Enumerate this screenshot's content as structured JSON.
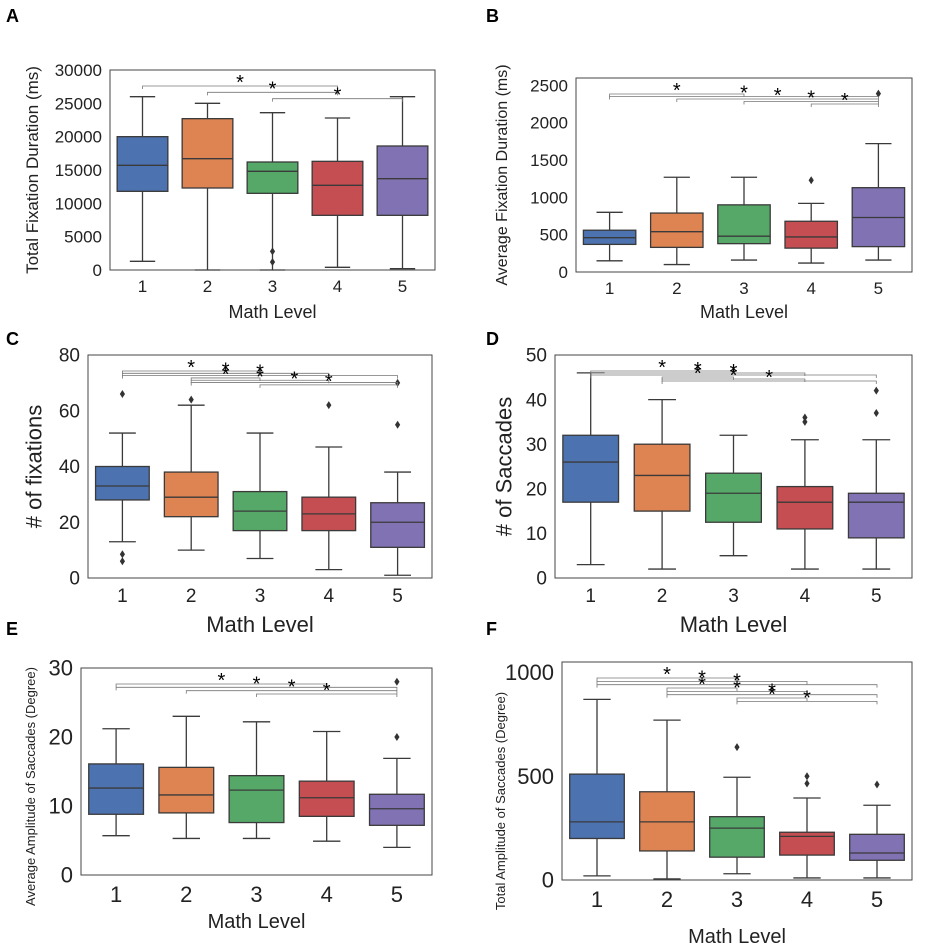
{
  "figure": {
    "colors": [
      "#4c72b0",
      "#dd8452",
      "#55a868",
      "#c44e52",
      "#8172b3"
    ],
    "sig_marker": "*"
  },
  "chart_data": [
    {
      "type": "box",
      "panel": "A",
      "xlabel": "Math Level",
      "ylabel": "Total Fixation Duration (ms)",
      "categories": [
        "1",
        "2",
        "3",
        "4",
        "5"
      ],
      "ylim": [
        0,
        30000
      ],
      "yticks": [
        0,
        5000,
        10000,
        15000,
        20000,
        25000,
        30000
      ],
      "boxes": [
        {
          "min": 1300,
          "q1": 11800,
          "median": 15700,
          "q3": 20000,
          "max": 26000,
          "outliers": []
        },
        {
          "min": 0,
          "q1": 12300,
          "median": 16700,
          "q3": 22700,
          "max": 25000,
          "outliers": []
        },
        {
          "min": 0,
          "q1": 11500,
          "median": 14800,
          "q3": 16200,
          "max": 23600,
          "outliers": [
            1200,
            2800
          ]
        },
        {
          "min": 400,
          "q1": 8200,
          "median": 12700,
          "q3": 16300,
          "max": 22800,
          "outliers": []
        },
        {
          "min": 200,
          "q1": 8200,
          "median": 13700,
          "q3": 18600,
          "max": 26000,
          "outliers": []
        }
      ],
      "significance": [
        {
          "from": "1",
          "to": "4",
          "label": "*"
        },
        {
          "from": "2",
          "to": "4",
          "label": "*"
        },
        {
          "from": "3",
          "to": "5",
          "label": "*"
        }
      ]
    },
    {
      "type": "box",
      "panel": "B",
      "xlabel": "Math Level",
      "ylabel": "Average Fixation Duration (ms)",
      "categories": [
        "1",
        "2",
        "3",
        "4",
        "5"
      ],
      "ylim": [
        0,
        2600
      ],
      "yticks": [
        0,
        500,
        1000,
        1500,
        2000,
        2500
      ],
      "boxes": [
        {
          "min": 150,
          "q1": 370,
          "median": 460,
          "q3": 560,
          "max": 800,
          "outliers": []
        },
        {
          "min": 100,
          "q1": 330,
          "median": 540,
          "q3": 790,
          "max": 1270,
          "outliers": []
        },
        {
          "min": 160,
          "q1": 380,
          "median": 480,
          "q3": 900,
          "max": 1270,
          "outliers": []
        },
        {
          "min": 120,
          "q1": 320,
          "median": 470,
          "q3": 680,
          "max": 920,
          "outliers": [
            1230
          ]
        },
        {
          "min": 160,
          "q1": 340,
          "median": 730,
          "q3": 1130,
          "max": 1720,
          "outliers": [
            2390
          ]
        }
      ],
      "significance": [
        {
          "from": "1",
          "to": "3",
          "label": "*"
        },
        {
          "from": "1",
          "to": "5",
          "label": "*"
        },
        {
          "from": "2",
          "to": "5",
          "label": "*"
        },
        {
          "from": "3",
          "to": "5",
          "label": "*"
        },
        {
          "from": "4",
          "to": "5",
          "label": "*"
        }
      ]
    },
    {
      "type": "box",
      "panel": "C",
      "xlabel": "Math Level",
      "ylabel": "# of fixations",
      "categories": [
        "1",
        "2",
        "3",
        "4",
        "5"
      ],
      "ylim": [
        0,
        80
      ],
      "yticks": [
        0,
        20,
        40,
        60,
        80
      ],
      "boxes": [
        {
          "min": 13,
          "q1": 28,
          "median": 33,
          "q3": 40,
          "max": 52,
          "outliers": [
            6,
            8.5,
            66
          ]
        },
        {
          "min": 10,
          "q1": 22,
          "median": 29,
          "q3": 38,
          "max": 62,
          "outliers": [
            64
          ]
        },
        {
          "min": 7,
          "q1": 17,
          "median": 24,
          "q3": 31,
          "max": 52,
          "outliers": []
        },
        {
          "min": 3,
          "q1": 17,
          "median": 23,
          "q3": 29,
          "max": 47,
          "outliers": [
            62
          ]
        },
        {
          "min": 1,
          "q1": 11,
          "median": 20,
          "q3": 27,
          "max": 38,
          "outliers": [
            55,
            70
          ]
        }
      ],
      "significance": [
        {
          "from": "1",
          "to": "3",
          "label": "*"
        },
        {
          "from": "1",
          "to": "4",
          "label": "*"
        },
        {
          "from": "1",
          "to": "5",
          "label": "*"
        },
        {
          "from": "2",
          "to": "3",
          "label": "*"
        },
        {
          "from": "2",
          "to": "4",
          "label": "*"
        },
        {
          "from": "2",
          "to": "5",
          "label": "*"
        },
        {
          "from": "3",
          "to": "5",
          "label": "*"
        }
      ]
    },
    {
      "type": "box",
      "panel": "D",
      "xlabel": "Math Level",
      "ylabel": "# of Saccades",
      "categories": [
        "1",
        "2",
        "3",
        "4",
        "5"
      ],
      "ylim": [
        0,
        50
      ],
      "yticks": [
        0,
        10,
        20,
        30,
        40,
        50
      ],
      "boxes": [
        {
          "min": 3,
          "q1": 17,
          "median": 26,
          "q3": 32,
          "max": 46,
          "outliers": []
        },
        {
          "min": 2,
          "q1": 15,
          "median": 23,
          "q3": 30,
          "max": 40,
          "outliers": []
        },
        {
          "min": 5,
          "q1": 12.5,
          "median": 19,
          "q3": 23.5,
          "max": 32,
          "outliers": []
        },
        {
          "min": 2,
          "q1": 11,
          "median": 17,
          "q3": 20.5,
          "max": 31,
          "outliers": [
            35,
            36
          ]
        },
        {
          "min": 2,
          "q1": 9,
          "median": 17,
          "q3": 19,
          "max": 31,
          "outliers": [
            37,
            42
          ]
        }
      ],
      "significance": [
        {
          "from": "1",
          "to": "3",
          "label": "*"
        },
        {
          "from": "1",
          "to": "4",
          "label": "*"
        },
        {
          "from": "1",
          "to": "5",
          "label": "*"
        },
        {
          "from": "2",
          "to": "3",
          "label": "*"
        },
        {
          "from": "2",
          "to": "4",
          "label": "*"
        },
        {
          "from": "2",
          "to": "5",
          "label": "*"
        }
      ]
    },
    {
      "type": "box",
      "panel": "E",
      "xlabel": "Math Level",
      "ylabel": "Average Amplitude of Saccades (Degree)",
      "categories": [
        "1",
        "2",
        "3",
        "4",
        "5"
      ],
      "ylim": [
        0,
        30
      ],
      "yticks": [
        0,
        10,
        20,
        30
      ],
      "boxes": [
        {
          "min": 5.7,
          "q1": 8.8,
          "median": 12.6,
          "q3": 16.1,
          "max": 21.2,
          "outliers": []
        },
        {
          "min": 5.3,
          "q1": 9,
          "median": 11.6,
          "q3": 15.6,
          "max": 23,
          "outliers": []
        },
        {
          "min": 5.3,
          "q1": 7.6,
          "median": 12.3,
          "q3": 14.4,
          "max": 22.2,
          "outliers": []
        },
        {
          "min": 4.9,
          "q1": 8.5,
          "median": 11.2,
          "q3": 13.6,
          "max": 20.8,
          "outliers": []
        },
        {
          "min": 4,
          "q1": 7.2,
          "median": 9.6,
          "q3": 11.7,
          "max": 16.9,
          "outliers": [
            20,
            28
          ]
        }
      ],
      "significance": [
        {
          "from": "1",
          "to": "4",
          "label": "*"
        },
        {
          "from": "1",
          "to": "5",
          "label": "*"
        },
        {
          "from": "2",
          "to": "5",
          "label": "*"
        },
        {
          "from": "3",
          "to": "5",
          "label": "*"
        }
      ]
    },
    {
      "type": "box",
      "panel": "F",
      "xlabel": "Math Level",
      "ylabel": "Total Amplitude of Saccades (Degree)",
      "categories": [
        "1",
        "2",
        "3",
        "4",
        "5"
      ],
      "ylim": [
        0,
        1050
      ],
      "yticks": [
        0,
        500,
        1000
      ],
      "boxes": [
        {
          "min": 20,
          "q1": 200,
          "median": 280,
          "q3": 510,
          "max": 870,
          "outliers": []
        },
        {
          "min": 5,
          "q1": 140,
          "median": 280,
          "q3": 425,
          "max": 770,
          "outliers": []
        },
        {
          "min": 30,
          "q1": 110,
          "median": 250,
          "q3": 305,
          "max": 495,
          "outliers": [
            640
          ]
        },
        {
          "min": 10,
          "q1": 120,
          "median": 210,
          "q3": 230,
          "max": 395,
          "outliers": [
            465,
            500
          ]
        },
        {
          "min": 10,
          "q1": 95,
          "median": 130,
          "q3": 220,
          "max": 360,
          "outliers": [
            460
          ]
        }
      ],
      "significance": [
        {
          "from": "1",
          "to": "3",
          "label": "*"
        },
        {
          "from": "1",
          "to": "4",
          "label": "*"
        },
        {
          "from": "1",
          "to": "5",
          "label": "*"
        },
        {
          "from": "2",
          "to": "3",
          "label": "*"
        },
        {
          "from": "2",
          "to": "4",
          "label": "*"
        },
        {
          "from": "2",
          "to": "5",
          "label": "*"
        },
        {
          "from": "3",
          "to": "4",
          "label": "*"
        },
        {
          "from": "3",
          "to": "5",
          "label": "*"
        }
      ]
    }
  ]
}
